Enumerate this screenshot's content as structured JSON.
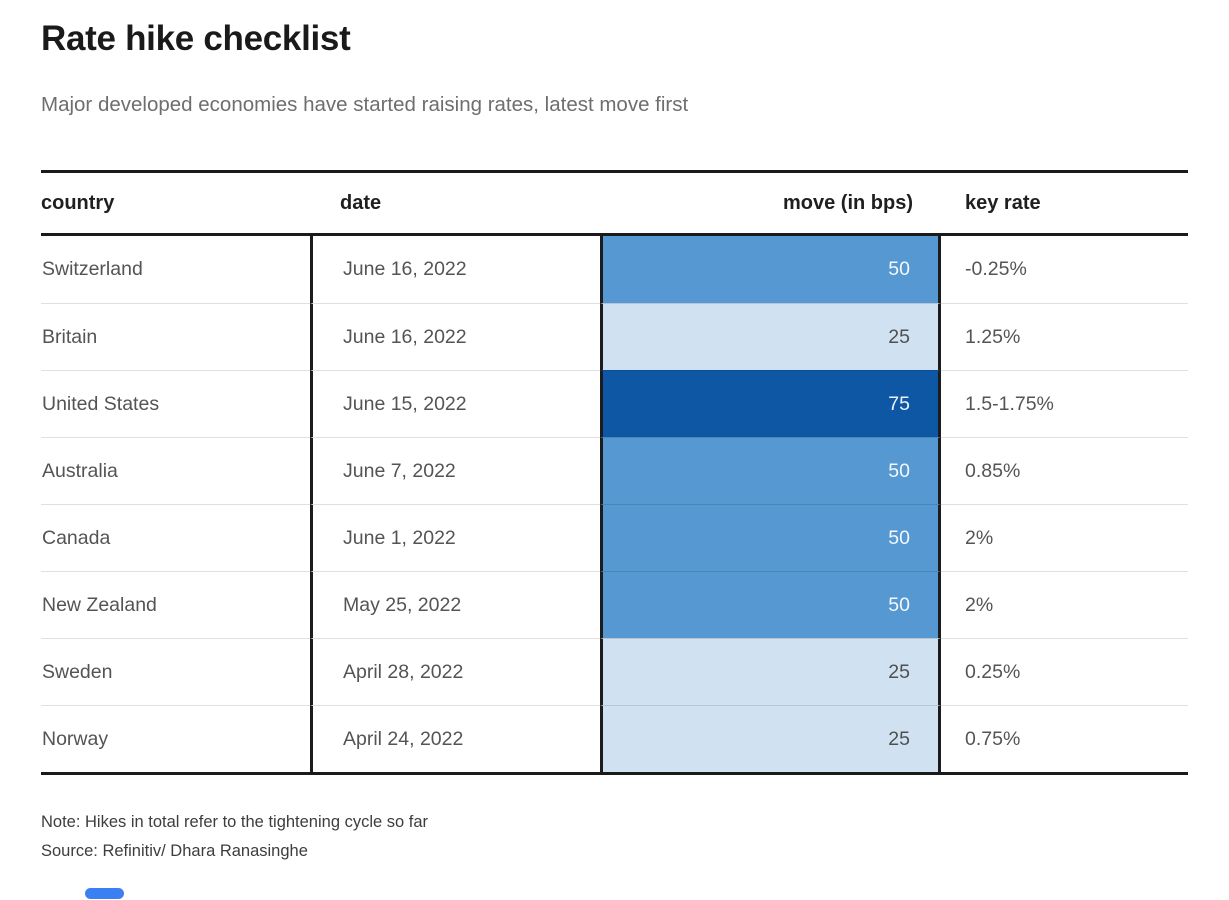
{
  "header": {
    "title": "Rate hike checklist",
    "subtitle": "Major developed economies have started raising rates, latest move first"
  },
  "table": {
    "columns": [
      "country",
      "date",
      "move (in bps)",
      "key rate"
    ],
    "rows": [
      {
        "country": "Switzerland",
        "date": "June 16, 2022",
        "move": 50,
        "key_rate": "-0.25%"
      },
      {
        "country": "Britain",
        "date": "June 16, 2022",
        "move": 25,
        "key_rate": "1.25%"
      },
      {
        "country": "United States",
        "date": "June 15, 2022",
        "move": 75,
        "key_rate": "1.5-1.75%"
      },
      {
        "country": "Australia",
        "date": "June 7, 2022",
        "move": 50,
        "key_rate": "0.85%"
      },
      {
        "country": "Canada",
        "date": "June 1, 2022",
        "move": 50,
        "key_rate": "2%"
      },
      {
        "country": "New Zealand",
        "date": "May 25, 2022",
        "move": 50,
        "key_rate": "2%"
      },
      {
        "country": "Sweden",
        "date": "April 28, 2022",
        "move": 25,
        "key_rate": "0.25%"
      },
      {
        "country": "Norway",
        "date": "April 24, 2022",
        "move": 25,
        "key_rate": "0.75%"
      }
    ]
  },
  "notes": {
    "note": "Note: Hikes in total refer to the tightening cycle so far",
    "source": "Source: Refinitiv/ Dhara Ranasinghe"
  },
  "colors": {
    "move_25": "#d0e2f2",
    "move_50": "#5598d2",
    "move_75": "#0e57a5",
    "border_dark": "#1a1a1a",
    "accent_bar": "#3b80f2"
  },
  "chart_data": {
    "type": "table",
    "title": "Rate hike checklist",
    "subtitle": "Major developed economies have started raising rates, latest move first",
    "columns": [
      "country",
      "date",
      "move (in bps)",
      "key rate"
    ],
    "rows": [
      [
        "Switzerland",
        "June 16, 2022",
        50,
        "-0.25%"
      ],
      [
        "Britain",
        "June 16, 2022",
        25,
        "1.25%"
      ],
      [
        "United States",
        "June 15, 2022",
        75,
        "1.5-1.75%"
      ],
      [
        "Australia",
        "June 7, 2022",
        50,
        "0.85%"
      ],
      [
        "Canada",
        "June 1, 2022",
        50,
        "2%"
      ],
      [
        "New Zealand",
        "May 25, 2022",
        50,
        "2%"
      ],
      [
        "Sweden",
        "April 28, 2022",
        25,
        "0.25%"
      ],
      [
        "Norway",
        "April 24, 2022",
        25,
        "0.75%"
      ]
    ],
    "heatmap_column": "move (in bps)",
    "color_scale": {
      "25": "#d0e2f2",
      "50": "#5598d2",
      "75": "#0e57a5"
    },
    "note": "Note: Hikes in total refer to the tightening cycle so far",
    "source": "Source: Refinitiv/ Dhara Ranasinghe"
  }
}
